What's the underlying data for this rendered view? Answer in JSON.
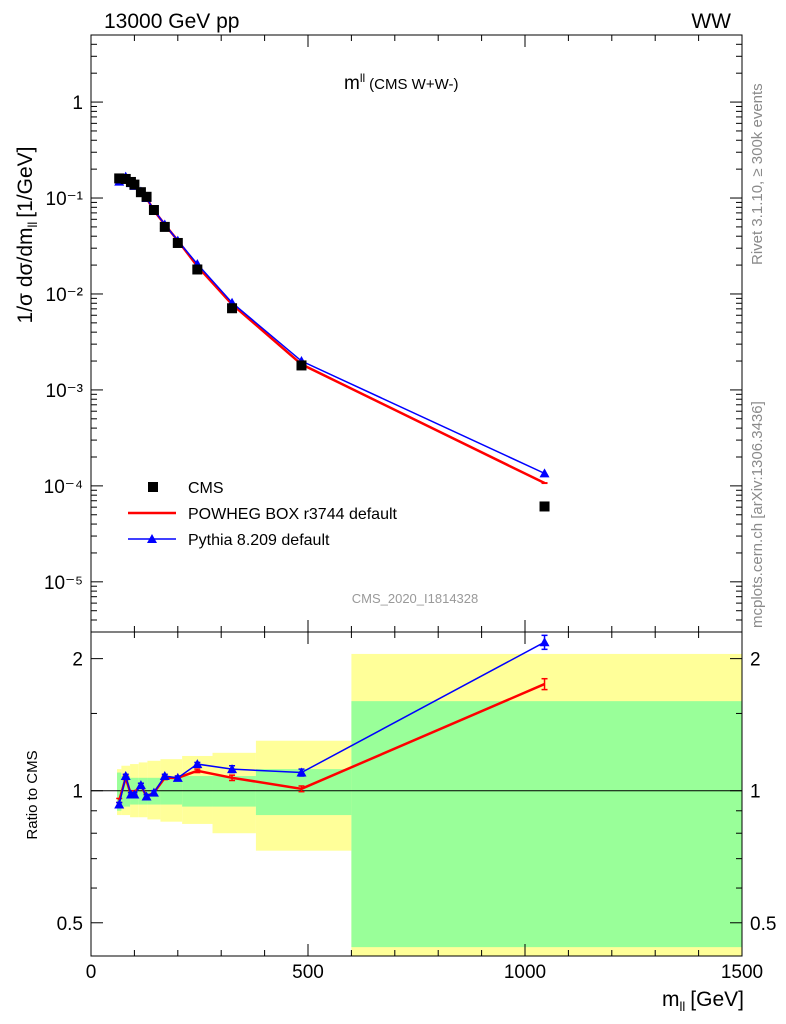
{
  "header": {
    "beam": "13000 GeV pp",
    "process": "WW"
  },
  "side": {
    "rivet": "Rivet 3.1.10, ≥ 300k events",
    "mcplots": "mcplots.cern.ch [arXiv:1306.3436]"
  },
  "chart_data": [
    {
      "type": "line",
      "title": "m",
      "title_sup": "ll",
      "title_note": "(CMS W+W-)",
      "analysis": "CMS_2020_I1814328",
      "ylabel": "1/σ dσ/dm",
      "ylabel_sub": "ll",
      "ylabel_unit": "[1/GeV]",
      "yscale": "log",
      "xlim": [
        0,
        1500
      ],
      "ylim": [
        3e-06,
        5
      ],
      "ytick_labels": [
        "10⁻⁵",
        "10⁻⁴",
        "10⁻³",
        "10⁻²",
        "10⁻¹",
        "1"
      ],
      "legend_position": "bottom-left",
      "series": [
        {
          "name": "CMS",
          "color": "#000000",
          "marker": "square",
          "x": [
            65,
            80,
            92,
            100,
            115,
            128,
            145,
            170,
            200,
            245,
            325,
            485,
            1045
          ],
          "y": [
            0.16,
            0.158,
            0.147,
            0.138,
            0.115,
            0.103,
            0.075,
            0.05,
            0.034,
            0.018,
            0.0071,
            0.0018,
            6.1e-05
          ]
        },
        {
          "name": "POWHEG BOX r3744 default",
          "color": "#ff0000",
          "marker": "none",
          "x": [
            65,
            80,
            92,
            100,
            115,
            128,
            145,
            170,
            200,
            245,
            325,
            485,
            1045
          ],
          "y": [
            0.152,
            0.163,
            0.144,
            0.136,
            0.118,
            0.1,
            0.074,
            0.053,
            0.036,
            0.0195,
            0.0078,
            0.00185,
            0.000107
          ]
        },
        {
          "name": "Pythia 8.209 default",
          "color": "#0000ff",
          "marker": "triangle",
          "x": [
            65,
            80,
            92,
            100,
            115,
            128,
            145,
            170,
            200,
            245,
            325,
            485,
            1045
          ],
          "y": [
            0.148,
            0.167,
            0.143,
            0.134,
            0.117,
            0.1,
            0.075,
            0.053,
            0.036,
            0.0205,
            0.0081,
            0.002,
            0.000135
          ]
        }
      ]
    },
    {
      "type": "line",
      "xlabel": "m",
      "xlabel_sub": "ll",
      "xlabel_unit": "[GeV]",
      "ylabel": "Ratio to CMS",
      "yscale": "log",
      "xlim": [
        0,
        1500
      ],
      "ylim": [
        0.42,
        2.3
      ],
      "xtick_labels": [
        "0",
        "500",
        "1000",
        "1500"
      ],
      "ytick_labels": [
        "0.5",
        "1",
        "2"
      ],
      "reference_line": 1.0,
      "bands": [
        {
          "name": "inner",
          "color": "#99ff99",
          "x0": [
            60,
            70,
            90,
            110,
            130,
            160,
            210,
            280,
            380,
            600
          ],
          "x1": [
            70,
            90,
            110,
            130,
            160,
            210,
            280,
            380,
            600,
            1500
          ],
          "lo": [
            0.9,
            0.92,
            0.93,
            0.93,
            0.93,
            0.93,
            0.92,
            0.92,
            0.88,
            0.44
          ],
          "hi": [
            1.1,
            1.08,
            1.07,
            1.07,
            1.07,
            1.07,
            1.08,
            1.08,
            1.12,
            1.6
          ]
        },
        {
          "name": "outer",
          "color": "#ffff99",
          "x0": [
            60,
            70,
            90,
            110,
            130,
            160,
            210,
            280,
            380,
            600
          ],
          "x1": [
            70,
            90,
            110,
            130,
            160,
            210,
            280,
            380,
            600,
            1500
          ],
          "lo": [
            0.88,
            0.88,
            0.87,
            0.87,
            0.86,
            0.85,
            0.84,
            0.8,
            0.73,
            0.41
          ],
          "hi": [
            1.12,
            1.14,
            1.15,
            1.16,
            1.17,
            1.18,
            1.2,
            1.22,
            1.3,
            2.05
          ]
        }
      ],
      "series": [
        {
          "name": "POWHEG BOX r3744 default",
          "color": "#ff0000",
          "x": [
            65,
            80,
            92,
            100,
            115,
            128,
            145,
            170,
            200,
            245,
            325,
            485,
            1045
          ],
          "y": [
            0.95,
            1.07,
            0.98,
            0.99,
            1.03,
            0.97,
            0.99,
            1.07,
            1.07,
            1.11,
            1.07,
            1.01,
            1.75
          ],
          "err": [
            0.01,
            0.01,
            0.01,
            0.01,
            0.01,
            0.01,
            0.01,
            0.01,
            0.01,
            0.01,
            0.015,
            0.015,
            0.05
          ]
        },
        {
          "name": "Pythia 8.209 default",
          "color": "#0000ff",
          "x": [
            65,
            80,
            92,
            100,
            115,
            128,
            145,
            170,
            200,
            245,
            325,
            485,
            1045
          ],
          "y": [
            0.93,
            1.08,
            0.98,
            0.98,
            1.03,
            0.97,
            0.99,
            1.08,
            1.07,
            1.15,
            1.12,
            1.1,
            2.18
          ],
          "err": [
            0.01,
            0.01,
            0.01,
            0.01,
            0.01,
            0.01,
            0.01,
            0.01,
            0.01,
            0.01,
            0.02,
            0.02,
            0.08
          ]
        }
      ]
    }
  ]
}
